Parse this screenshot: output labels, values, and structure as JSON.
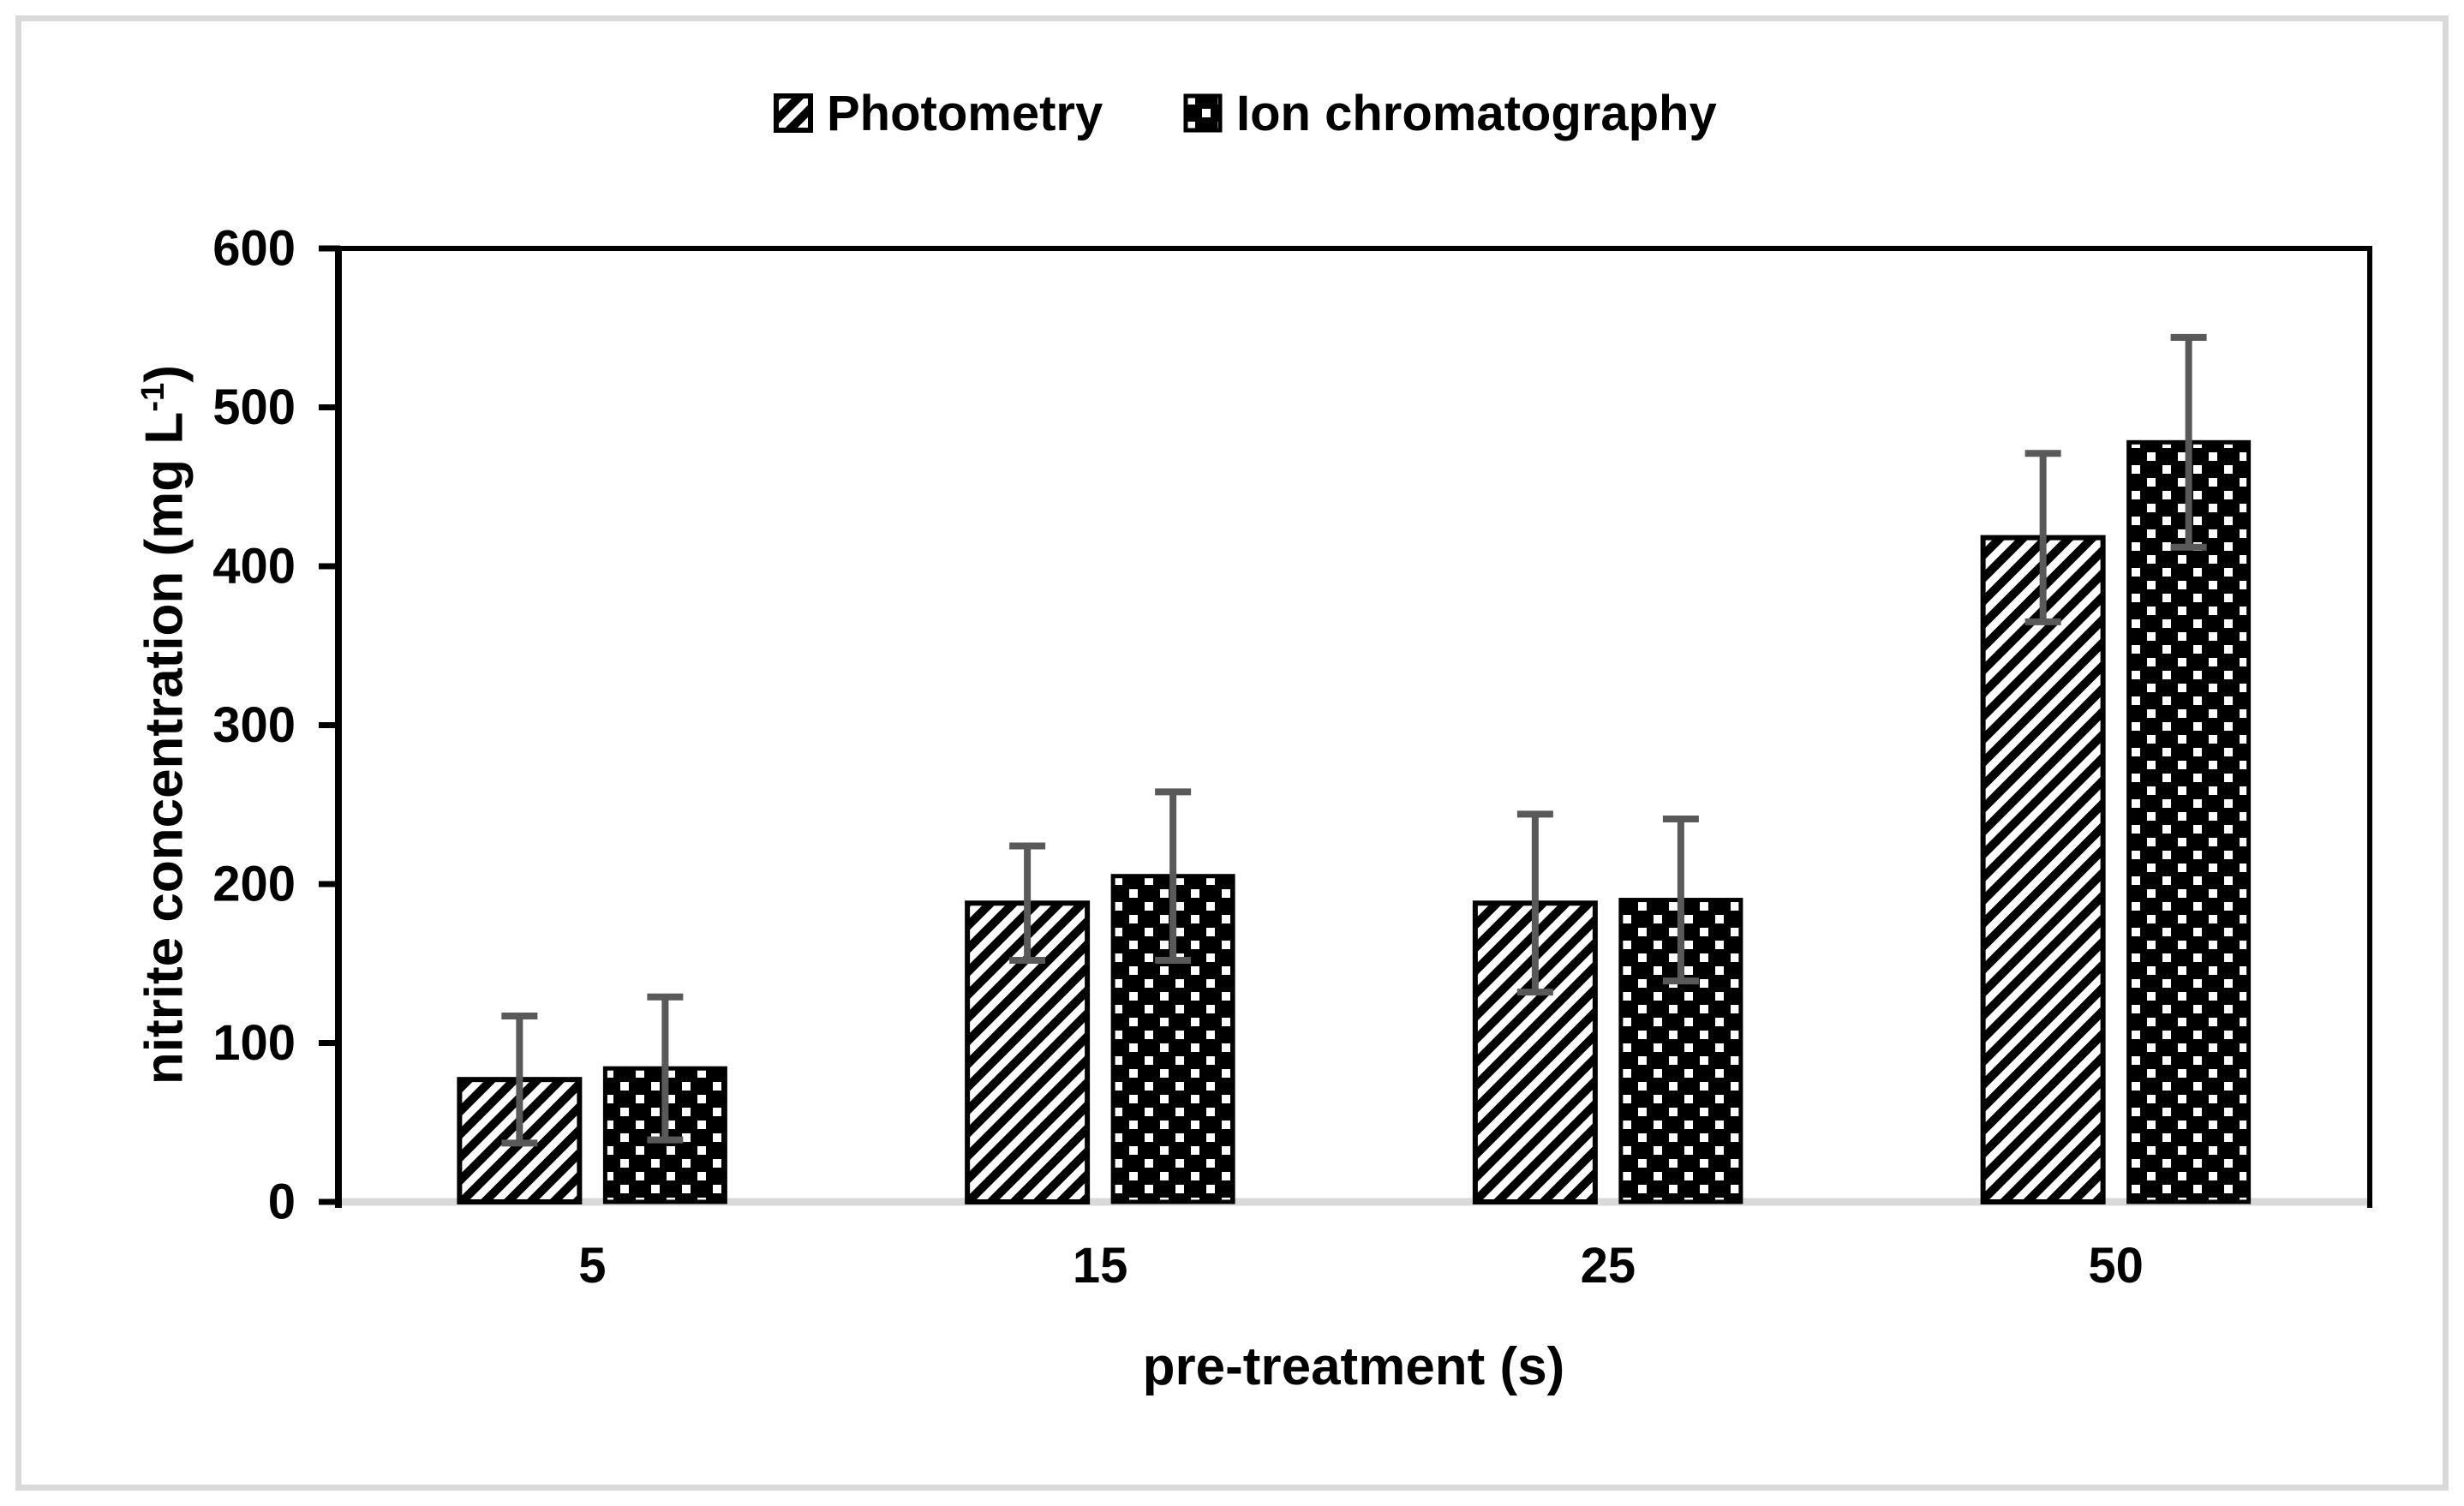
{
  "chart_data": {
    "type": "bar",
    "title": "",
    "categories": [
      "5",
      "15",
      "25",
      "50"
    ],
    "series": [
      {
        "name": "Photometry",
        "pattern": "diagonal-hatch",
        "values": [
          77,
          188,
          188,
          418
        ],
        "errors": [
          40,
          36,
          56,
          53
        ]
      },
      {
        "name": "Ion chromatography",
        "pattern": "dotted-grid",
        "values": [
          84,
          205,
          190,
          478
        ],
        "errors": [
          45,
          53,
          51,
          66
        ]
      }
    ],
    "xlabel": "pre-treatment (s)",
    "ylabel": "nitrite concentration (mg L-1)",
    "ylabel_parts": {
      "prefix": "nitrite concentration (mg L",
      "sup": "-1",
      "suffix": ")"
    },
    "ylim": [
      0,
      600
    ],
    "ytick_step": 100,
    "ytick_labels": [
      "0",
      "100",
      "200",
      "300",
      "400",
      "500",
      "600"
    ],
    "grid": false,
    "legend_position": "top-center",
    "error_bars": "symmetric, caps, shown on every bar",
    "colors": {
      "bar_black": "#000000",
      "bar_white": "#ffffff",
      "error_bar": "#595959",
      "baseline": "#d9d9d9",
      "frame": "#000000",
      "outer_border": "#d9d9d9"
    }
  }
}
